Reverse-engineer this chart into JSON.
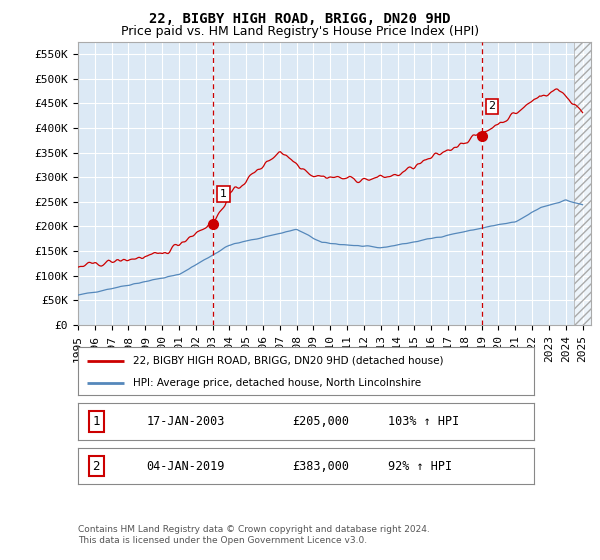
{
  "title": "22, BIGBY HIGH ROAD, BRIGG, DN20 9HD",
  "subtitle": "Price paid vs. HM Land Registry's House Price Index (HPI)",
  "ylabel_ticks": [
    "£0",
    "£50K",
    "£100K",
    "£150K",
    "£200K",
    "£250K",
    "£300K",
    "£350K",
    "£400K",
    "£450K",
    "£500K",
    "£550K"
  ],
  "ytick_values": [
    0,
    50000,
    100000,
    150000,
    200000,
    250000,
    300000,
    350000,
    400000,
    450000,
    500000,
    550000
  ],
  "ylim": [
    0,
    575000
  ],
  "xlim_start": 1995.0,
  "xlim_end": 2025.5,
  "red_line_color": "#cc0000",
  "blue_line_color": "#5588bb",
  "marker1_x": 2003.04,
  "marker1_y": 205000,
  "marker2_x": 2019.01,
  "marker2_y": 383000,
  "vline_color": "#cc0000",
  "vline_style": "--",
  "legend_red_label": "22, BIGBY HIGH ROAD, BRIGG, DN20 9HD (detached house)",
  "legend_blue_label": "HPI: Average price, detached house, North Lincolnshire",
  "table_row1": [
    "1",
    "17-JAN-2003",
    "£205,000",
    "103% ↑ HPI"
  ],
  "table_row2": [
    "2",
    "04-JAN-2019",
    "£383,000",
    "92% ↑ HPI"
  ],
  "footnote": "Contains HM Land Registry data © Crown copyright and database right 2024.\nThis data is licensed under the Open Government Licence v3.0.",
  "background_color": "#ffffff",
  "plot_bg_color": "#dce9f5",
  "grid_color": "#ffffff",
  "title_fontsize": 10,
  "subtitle_fontsize": 9,
  "tick_fontsize": 8,
  "xtick_years": [
    "1995",
    "1996",
    "1997",
    "1998",
    "1999",
    "2000",
    "2001",
    "2002",
    "2003",
    "2004",
    "2005",
    "2006",
    "2007",
    "2008",
    "2009",
    "2010",
    "2011",
    "2012",
    "2013",
    "2014",
    "2015",
    "2016",
    "2017",
    "2018",
    "2019",
    "2020",
    "2021",
    "2022",
    "2023",
    "2024",
    "2025"
  ],
  "hatch_start": 2024.5
}
